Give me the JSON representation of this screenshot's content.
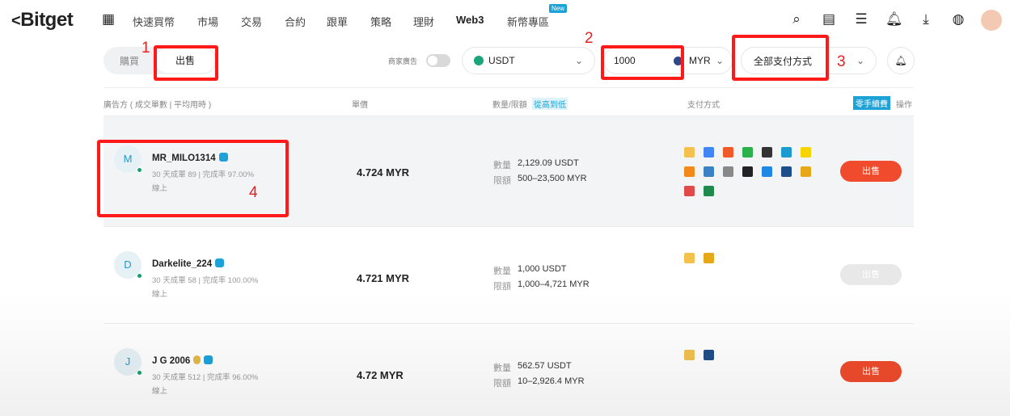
{
  "nav": {
    "logo": "Bitget",
    "items": [
      "快速買幣",
      "市場",
      "交易",
      "合約",
      "跟單",
      "策略",
      "理財",
      "Web3",
      "新幣專區"
    ],
    "new_badge": "New"
  },
  "filters": {
    "tab_buy": "購買",
    "tab_sell": "出售",
    "merchant_label": "商家廣告",
    "merchant_toggle": false,
    "coin": "USDT",
    "amount": "1000",
    "fiat": "MYR",
    "payment": "全部支付方式"
  },
  "annotations": [
    "1",
    "2",
    "3",
    "4"
  ],
  "table": {
    "headers": {
      "advertiser": "廣告方 ( 成交單數 | 平均用時 )",
      "price": "單價",
      "quantity": "數量/限額",
      "sort": "從高到低",
      "payment": "支付方式",
      "zero_fee": "零手續費",
      "action": "操作"
    },
    "qty_label": "數量",
    "limit_label": "限額",
    "rows": [
      {
        "initial": "M",
        "name": "MR_MILO1314",
        "stats": "30 天成單 89 | 完成率 97.00%",
        "status": "線上",
        "price": "4.724 MYR",
        "quantity": "2,129.09 USDT",
        "limit": "500–23,500 MYR",
        "action": "出售",
        "enabled": true,
        "medal": false,
        "payments": [
          "#f2c14e",
          "#4285f4",
          "#ef5a28",
          "#2bb24c",
          "#333333",
          "#1c9bd0",
          "#f5d400",
          "#f28a1a",
          "#3b82c4",
          "#888888",
          "#222222",
          "#1e88e5",
          "#1f4f8a",
          "#e6a817",
          "#e04a4a",
          "#1f8a4c"
        ]
      },
      {
        "initial": "D",
        "name": "Darkelite_224",
        "stats": "30 天成單 58 | 完成率 100.00%",
        "status": "線上",
        "price": "4.721 MYR",
        "quantity": "1,000 USDT",
        "limit": "1,000–4,721 MYR",
        "action": "出售",
        "enabled": false,
        "medal": false,
        "payments": [
          "#f2c14e",
          "#e6a817"
        ]
      },
      {
        "initial": "J",
        "name": "J G 2006",
        "stats": "30 天成單 512 | 完成率 96.00%",
        "status": "線上",
        "price": "4.72 MYR",
        "quantity": "562.57 USDT",
        "limit": "10–2,926.4 MYR",
        "action": "出售",
        "enabled": true,
        "medal": true,
        "payments": [
          "#f2c14e",
          "#1f4f8a"
        ]
      }
    ]
  },
  "colors": {
    "accent": "#ef4b2c",
    "disabled": "#e8e8e8",
    "brand_blue": "#1da2d8",
    "annotation": "#ff1a1a"
  }
}
